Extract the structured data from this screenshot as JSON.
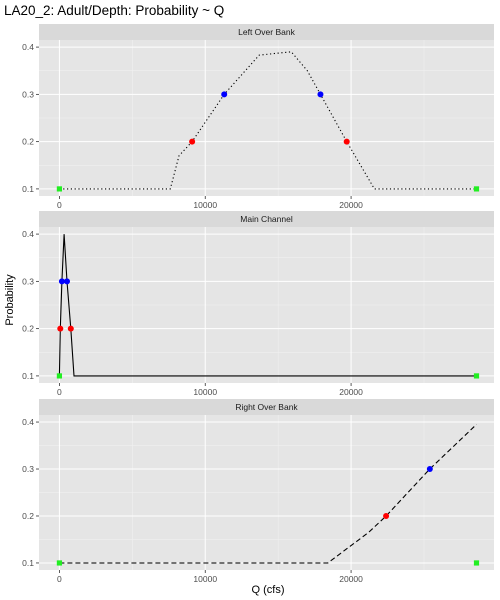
{
  "chart_data": {
    "type": "line",
    "title": "LA20_2: Adult/Depth: Probability ~ Q",
    "xlabel": "Q (cfs)",
    "ylabel": "Probability",
    "xlim": [
      -1400,
      29800
    ],
    "ylim": [
      0.085,
      0.415
    ],
    "x_ticks": [
      0,
      10000,
      20000
    ],
    "x_tick_labels": [
      "0",
      "10000",
      "20000"
    ],
    "y_ticks": [
      0.1,
      0.2,
      0.3,
      0.4
    ],
    "y_tick_labels": [
      "0.1",
      "0.2",
      "0.3",
      "0.4"
    ],
    "grid": true,
    "panel_background": "#e5e5e5",
    "strip_background": "#d9d9d9",
    "marker_colors": {
      "low": "#22ee22",
      "mid": "#ff0000",
      "high": "#0000ff"
    },
    "panels": [
      {
        "label": "Left Over Bank",
        "line_style": "dotted",
        "curve": [
          [
            0,
            0.1
          ],
          [
            7600,
            0.1
          ],
          [
            8200,
            0.17
          ],
          [
            9100,
            0.2
          ],
          [
            11300,
            0.3
          ],
          [
            13700,
            0.383
          ],
          [
            15900,
            0.39
          ],
          [
            17000,
            0.35
          ],
          [
            17900,
            0.3
          ],
          [
            19700,
            0.2
          ],
          [
            21600,
            0.1
          ],
          [
            28600,
            0.1
          ]
        ],
        "points": [
          {
            "x": 0,
            "y": 0.1,
            "level": "low",
            "shape": "square"
          },
          {
            "x": 28600,
            "y": 0.1,
            "level": "low",
            "shape": "square"
          },
          {
            "x": 9100,
            "y": 0.2,
            "level": "mid",
            "shape": "circle"
          },
          {
            "x": 19700,
            "y": 0.2,
            "level": "mid",
            "shape": "circle"
          },
          {
            "x": 11300,
            "y": 0.3,
            "level": "high",
            "shape": "circle"
          },
          {
            "x": 17900,
            "y": 0.3,
            "level": "high",
            "shape": "circle"
          }
        ]
      },
      {
        "label": "Main Channel",
        "line_style": "solid",
        "curve": [
          [
            0,
            0.1
          ],
          [
            60,
            0.2
          ],
          [
            170,
            0.3
          ],
          [
            320,
            0.4
          ],
          [
            520,
            0.3
          ],
          [
            780,
            0.2
          ],
          [
            1000,
            0.1
          ],
          [
            28600,
            0.1
          ]
        ],
        "points": [
          {
            "x": 0,
            "y": 0.1,
            "level": "low",
            "shape": "square"
          },
          {
            "x": 28600,
            "y": 0.1,
            "level": "low",
            "shape": "square"
          },
          {
            "x": 60,
            "y": 0.2,
            "level": "mid",
            "shape": "circle"
          },
          {
            "x": 780,
            "y": 0.2,
            "level": "mid",
            "shape": "circle"
          },
          {
            "x": 170,
            "y": 0.3,
            "level": "high",
            "shape": "circle"
          },
          {
            "x": 520,
            "y": 0.3,
            "level": "high",
            "shape": "circle"
          }
        ]
      },
      {
        "label": "Right Over Bank",
        "line_style": "dashed",
        "curve": [
          [
            0,
            0.1
          ],
          [
            18400,
            0.1
          ],
          [
            21200,
            0.165
          ],
          [
            22400,
            0.2
          ],
          [
            25400,
            0.3
          ],
          [
            28600,
            0.395
          ]
        ],
        "points": [
          {
            "x": 0,
            "y": 0.1,
            "level": "low",
            "shape": "square"
          },
          {
            "x": 28600,
            "y": 0.1,
            "level": "low",
            "shape": "square"
          },
          {
            "x": 22400,
            "y": 0.2,
            "level": "mid",
            "shape": "circle"
          },
          {
            "x": 25400,
            "y": 0.3,
            "level": "high",
            "shape": "circle"
          }
        ]
      }
    ]
  }
}
